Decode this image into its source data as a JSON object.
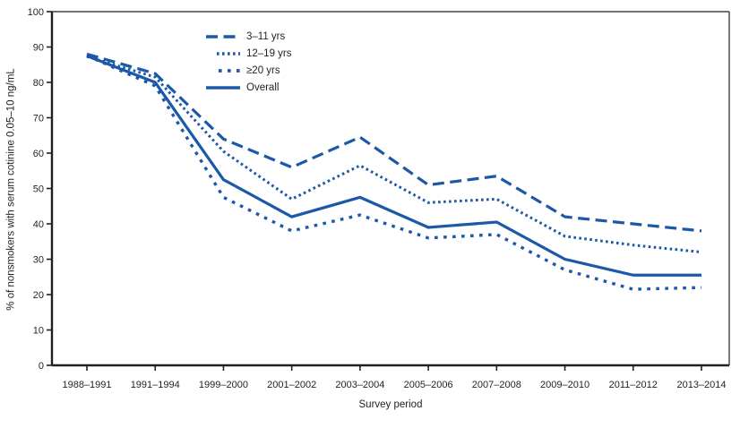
{
  "chart_data": {
    "type": "line",
    "title": "",
    "xlabel": "Survey period",
    "ylabel": "% of nonsmokers with serum cotinine 0.05–10 ng/mL",
    "ylim": [
      0,
      100
    ],
    "ytick_step": 10,
    "grid": false,
    "legend_position": "top-center",
    "categories": [
      "1988–1991",
      "1991–1994",
      "1999–2000",
      "2001–2002",
      "2003–2004",
      "2005–2006",
      "2007–2008",
      "2009–2010",
      "2011–2012",
      "2013–2014"
    ],
    "series": [
      {
        "name": "3–11 yrs",
        "line_style": "long-dash",
        "values": [
          88.0,
          82.5,
          64.0,
          56.0,
          64.5,
          51.0,
          53.5,
          42.0,
          40.0,
          38.0
        ]
      },
      {
        "name": "12–19 yrs",
        "line_style": "dotted",
        "values": [
          87.3,
          81.5,
          60.5,
          47.0,
          56.5,
          46.0,
          47.0,
          36.5,
          34.0,
          32.0
        ]
      },
      {
        "name": "≥20 yrs",
        "line_style": "sparse-dot",
        "values": [
          87.6,
          79.0,
          47.5,
          38.0,
          42.5,
          36.0,
          37.0,
          27.0,
          21.5,
          22.0
        ]
      },
      {
        "name": "Overall",
        "line_style": "solid",
        "values": [
          87.5,
          80.0,
          52.5,
          42.0,
          47.5,
          39.0,
          40.5,
          30.0,
          25.5,
          25.5
        ]
      }
    ]
  },
  "colors": {
    "line_blue": "#1b58a8",
    "axis": "#231f20",
    "background": "#ffffff"
  }
}
